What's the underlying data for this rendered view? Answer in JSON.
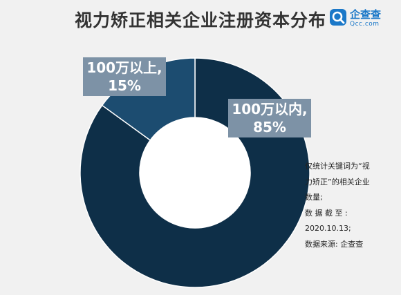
{
  "title": "视力矫正相关企业注册资本分布",
  "logo": {
    "name": "企查查",
    "domain": "Qcc.com",
    "icon": "qcc-magnifier-icon"
  },
  "colors": {
    "dominant_slice": "#0e2f48",
    "minor_slice": "#1c4c70",
    "label_box": "#7d92a6",
    "background": "#f1f1f1"
  },
  "chart_data": {
    "type": "pie",
    "donut": true,
    "title": "视力矫正相关企业注册资本分布",
    "series": [
      {
        "values": [
          85,
          15
        ],
        "categories": [
          "100万以内",
          "100万以上"
        ]
      }
    ],
    "slices": [
      {
        "label": "100万以内",
        "value": 85,
        "value_label": "85%"
      },
      {
        "label": "100万以上",
        "value": 15,
        "value_label": "15%"
      }
    ]
  },
  "labels": {
    "big_line1": "100万以内,",
    "big_line2": "85%",
    "small_line1": "100万以上,",
    "small_line2": "15%"
  },
  "note": {
    "line1": "仅统计关键词为“视",
    "line2": "力矫正”的相关企业",
    "line3": "数量;",
    "line4": "数 据 截 至 :",
    "line5": "2020.10.13;",
    "line6": "数据来源: 企查查"
  }
}
